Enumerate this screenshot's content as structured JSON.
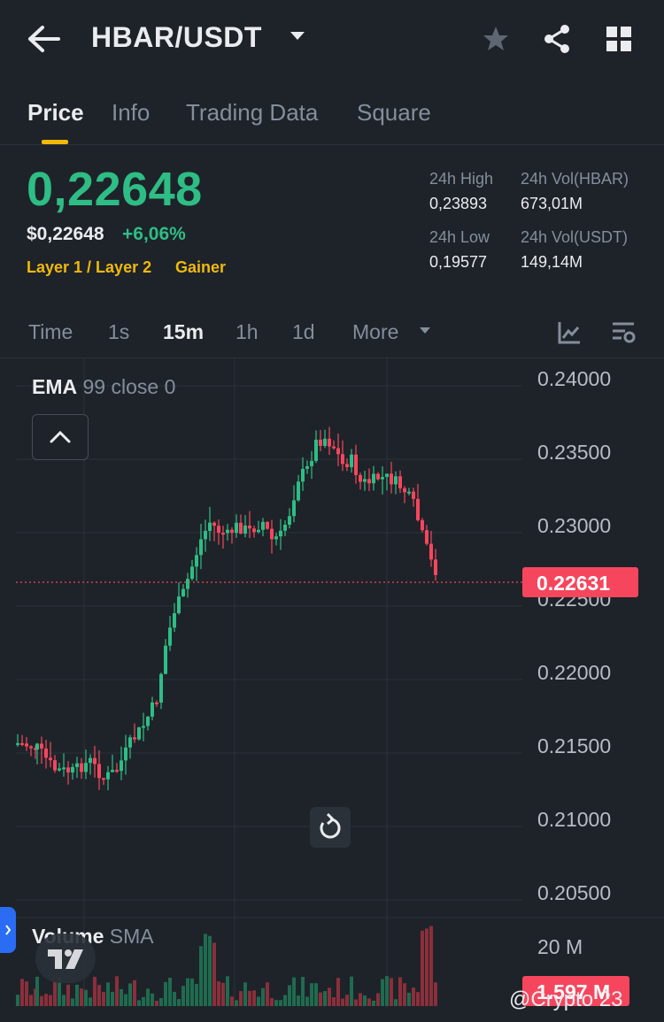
{
  "header": {
    "pair": "HBAR/USDT"
  },
  "tabs": [
    "Price",
    "Info",
    "Trading Data",
    "Square"
  ],
  "ticker": {
    "last_price": "0,22648",
    "usd_price": "$0,22648",
    "change": "+6,06%",
    "tag_category": "Layer 1 / Layer 2",
    "tag_gainer": "Gainer",
    "high_label": "24h High",
    "high_value": "0,23893",
    "vol_base_label": "24h Vol(HBAR)",
    "vol_base_value": "673,01M",
    "low_label": "24h Low",
    "low_value": "0,19577",
    "vol_quote_label": "24h Vol(USDT)",
    "vol_quote_value": "149,14M"
  },
  "timeframes": {
    "items": [
      "Time",
      "1s",
      "15m",
      "1h",
      "1d",
      "More"
    ],
    "active": "15m"
  },
  "chart": {
    "indicator_name": "EMA",
    "indicator_params": "99 close 0",
    "price_axis": [
      "0.24000",
      "0.23500",
      "0.23000",
      "0.22500",
      "0.22000",
      "0.21500",
      "0.21000",
      "0.20500"
    ],
    "current_price": "0.22631",
    "volume_name": "Volume",
    "volume_indicator": "SMA",
    "volume_axis": "20 M",
    "current_volume": "1.597 M",
    "colors": {
      "up": "#2ebd85",
      "down": "#f6465d",
      "accent": "#f0b90b"
    }
  },
  "watermark": "@Crypto 23"
}
